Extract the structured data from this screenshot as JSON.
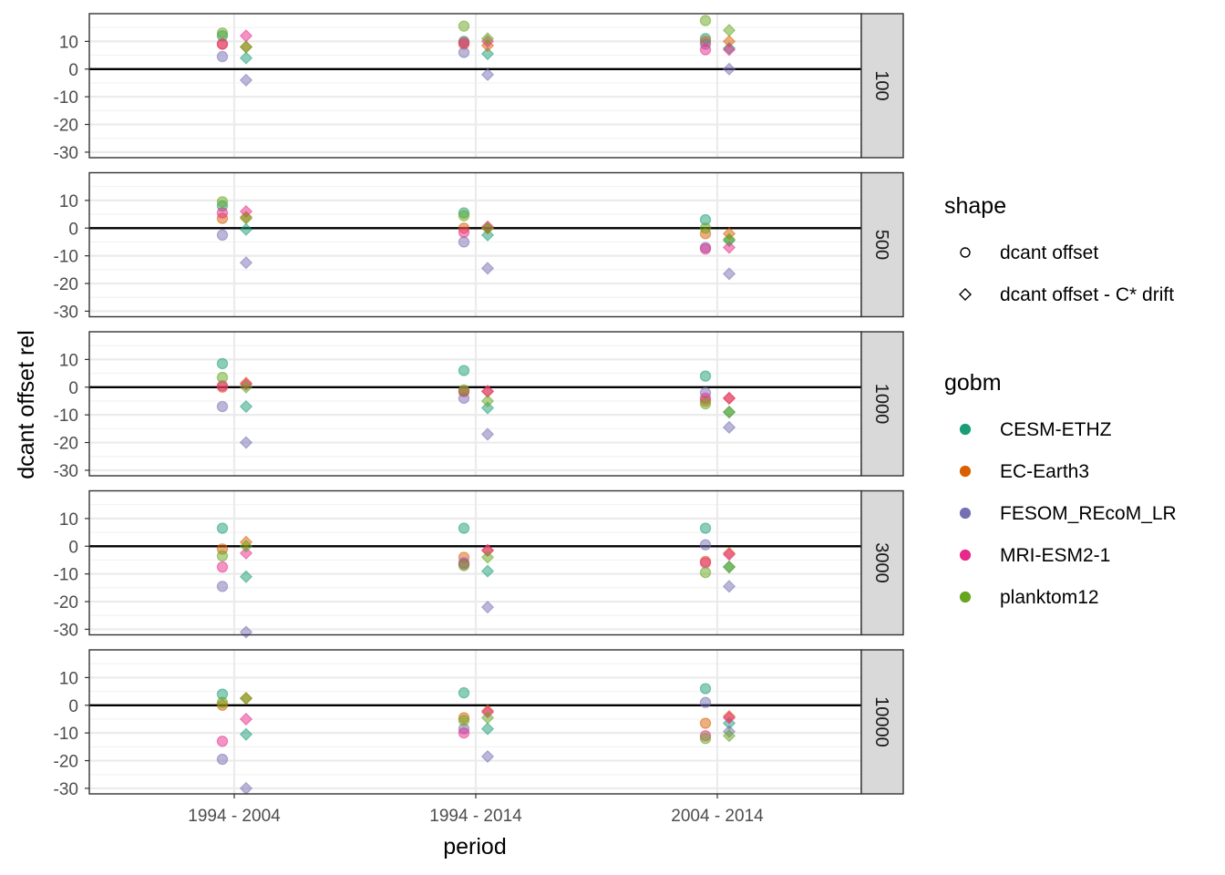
{
  "chart_data": {
    "type": "scatter",
    "xlabel": "period",
    "ylabel": "dcant offset rel",
    "categories": [
      "1994 - 2004",
      "1994 - 2014",
      "2004 - 2014"
    ],
    "ylim": [
      -32,
      20
    ],
    "yticks": [
      -30,
      -20,
      -10,
      0,
      10
    ],
    "reference_line": 0,
    "facets": [
      "100",
      "500",
      "1000",
      "3000",
      "10000"
    ],
    "facet_strip_position": "right",
    "grid": true,
    "legend_position": "right",
    "shape_legend": {
      "title": "shape",
      "items": [
        {
          "key": "circle",
          "label": "dcant offset"
        },
        {
          "key": "diamond",
          "label": "dcant offset - C* drift"
        }
      ]
    },
    "color_legend": {
      "title": "gobm",
      "items": [
        {
          "label": "CESM-ETHZ",
          "color": "#1b9e77"
        },
        {
          "label": "EC-Earth3",
          "color": "#d95f02"
        },
        {
          "label": "FESOM_REcoM_LR",
          "color": "#7570b3"
        },
        {
          "label": "MRI-ESM2-1",
          "color": "#e7298a"
        },
        {
          "label": "planktom12",
          "color": "#66a61e"
        }
      ]
    },
    "panels": [
      {
        "facet": "100",
        "series": [
          {
            "name": "CESM-ETHZ",
            "shape": "circle",
            "values": [
              12,
              10,
              11
            ]
          },
          {
            "name": "EC-Earth3",
            "shape": "circle",
            "values": [
              9,
              9,
              10
            ]
          },
          {
            "name": "FESOM_REcoM_LR",
            "shape": "circle",
            "values": [
              4.5,
              6,
              9
            ]
          },
          {
            "name": "MRI-ESM2-1",
            "shape": "circle",
            "values": [
              9,
              9.5,
              7
            ]
          },
          {
            "name": "planktom12",
            "shape": "circle",
            "values": [
              13,
              15.5,
              17.5
            ]
          },
          {
            "name": "CESM-ETHZ",
            "shape": "diamond",
            "values": [
              4,
              5.5,
              7.5
            ]
          },
          {
            "name": "EC-Earth3",
            "shape": "diamond",
            "values": [
              8,
              8.5,
              10
            ]
          },
          {
            "name": "FESOM_REcoM_LR",
            "shape": "diamond",
            "values": [
              -4,
              -2,
              0
            ]
          },
          {
            "name": "MRI-ESM2-1",
            "shape": "diamond",
            "values": [
              12,
              10,
              7
            ]
          },
          {
            "name": "planktom12",
            "shape": "diamond",
            "values": [
              8,
              11,
              14
            ]
          }
        ]
      },
      {
        "facet": "500",
        "series": [
          {
            "name": "CESM-ETHZ",
            "shape": "circle",
            "values": [
              8,
              5.5,
              3
            ]
          },
          {
            "name": "EC-Earth3",
            "shape": "circle",
            "values": [
              3.5,
              0,
              -2
            ]
          },
          {
            "name": "FESOM_REcoM_LR",
            "shape": "circle",
            "values": [
              -2.5,
              -5,
              -7
            ]
          },
          {
            "name": "MRI-ESM2-1",
            "shape": "circle",
            "values": [
              5.5,
              -1.5,
              -7.5
            ]
          },
          {
            "name": "planktom12",
            "shape": "circle",
            "values": [
              9.5,
              4.5,
              0
            ]
          },
          {
            "name": "CESM-ETHZ",
            "shape": "diamond",
            "values": [
              -0.5,
              -2.5,
              -4.5
            ]
          },
          {
            "name": "EC-Earth3",
            "shape": "diamond",
            "values": [
              4,
              0,
              -2
            ]
          },
          {
            "name": "FESOM_REcoM_LR",
            "shape": "diamond",
            "values": [
              -12.5,
              -14.5,
              -16.5
            ]
          },
          {
            "name": "MRI-ESM2-1",
            "shape": "diamond",
            "values": [
              6,
              0.5,
              -7
            ]
          },
          {
            "name": "planktom12",
            "shape": "diamond",
            "values": [
              3.5,
              0,
              -4
            ]
          }
        ]
      },
      {
        "facet": "1000",
        "series": [
          {
            "name": "CESM-ETHZ",
            "shape": "circle",
            "values": [
              8.5,
              6,
              4
            ]
          },
          {
            "name": "EC-Earth3",
            "shape": "circle",
            "values": [
              0,
              -1.5,
              -5
            ]
          },
          {
            "name": "FESOM_REcoM_LR",
            "shape": "circle",
            "values": [
              -7,
              -4,
              -2
            ]
          },
          {
            "name": "MRI-ESM2-1",
            "shape": "circle",
            "values": [
              0.5,
              -1.5,
              -4
            ]
          },
          {
            "name": "planktom12",
            "shape": "circle",
            "values": [
              3.5,
              -1,
              -6
            ]
          },
          {
            "name": "CESM-ETHZ",
            "shape": "diamond",
            "values": [
              -7,
              -7.5,
              -9
            ]
          },
          {
            "name": "EC-Earth3",
            "shape": "diamond",
            "values": [
              1.5,
              -1.5,
              -4
            ]
          },
          {
            "name": "FESOM_REcoM_LR",
            "shape": "diamond",
            "values": [
              -20,
              -17,
              -14.5
            ]
          },
          {
            "name": "MRI-ESM2-1",
            "shape": "diamond",
            "values": [
              1,
              -1.5,
              -4
            ]
          },
          {
            "name": "planktom12",
            "shape": "diamond",
            "values": [
              0,
              -5,
              -9
            ]
          }
        ]
      },
      {
        "facet": "3000",
        "series": [
          {
            "name": "CESM-ETHZ",
            "shape": "circle",
            "values": [
              6.5,
              6.5,
              6.5
            ]
          },
          {
            "name": "EC-Earth3",
            "shape": "circle",
            "values": [
              -1,
              -4,
              -5.5
            ]
          },
          {
            "name": "FESOM_REcoM_LR",
            "shape": "circle",
            "values": [
              -14.5,
              -6,
              0.5
            ]
          },
          {
            "name": "MRI-ESM2-1",
            "shape": "circle",
            "values": [
              -7.5,
              -6.5,
              -6
            ]
          },
          {
            "name": "planktom12",
            "shape": "circle",
            "values": [
              -3.5,
              -7,
              -9.5
            ]
          },
          {
            "name": "CESM-ETHZ",
            "shape": "diamond",
            "values": [
              -11,
              -9,
              -7.5
            ]
          },
          {
            "name": "EC-Earth3",
            "shape": "diamond",
            "values": [
              1.5,
              -1.5,
              -2.5
            ]
          },
          {
            "name": "FESOM_REcoM_LR",
            "shape": "diamond",
            "values": [
              -31,
              -22,
              -14.5
            ]
          },
          {
            "name": "MRI-ESM2-1",
            "shape": "diamond",
            "values": [
              -2.5,
              -1.5,
              -3
            ]
          },
          {
            "name": "planktom12",
            "shape": "diamond",
            "values": [
              0,
              -4,
              -7.5
            ]
          }
        ]
      },
      {
        "facet": "10000",
        "series": [
          {
            "name": "CESM-ETHZ",
            "shape": "circle",
            "values": [
              4,
              4.5,
              6
            ]
          },
          {
            "name": "EC-Earth3",
            "shape": "circle",
            "values": [
              0,
              -4.5,
              -6.5
            ]
          },
          {
            "name": "FESOM_REcoM_LR",
            "shape": "circle",
            "values": [
              -19.5,
              -8.5,
              1
            ]
          },
          {
            "name": "MRI-ESM2-1",
            "shape": "circle",
            "values": [
              -13,
              -10,
              -11
            ]
          },
          {
            "name": "planktom12",
            "shape": "circle",
            "values": [
              1,
              -5.5,
              -12
            ]
          },
          {
            "name": "CESM-ETHZ",
            "shape": "diamond",
            "values": [
              -10.5,
              -8.5,
              -6.5
            ]
          },
          {
            "name": "EC-Earth3",
            "shape": "diamond",
            "values": [
              2.5,
              -2,
              -4
            ]
          },
          {
            "name": "FESOM_REcoM_LR",
            "shape": "diamond",
            "values": [
              -30,
              -18.5,
              -9.5
            ]
          },
          {
            "name": "MRI-ESM2-1",
            "shape": "diamond",
            "values": [
              -5,
              -2.5,
              -4.5
            ]
          },
          {
            "name": "planktom12",
            "shape": "diamond",
            "values": [
              2.5,
              -4.5,
              -11
            ]
          }
        ]
      }
    ]
  }
}
